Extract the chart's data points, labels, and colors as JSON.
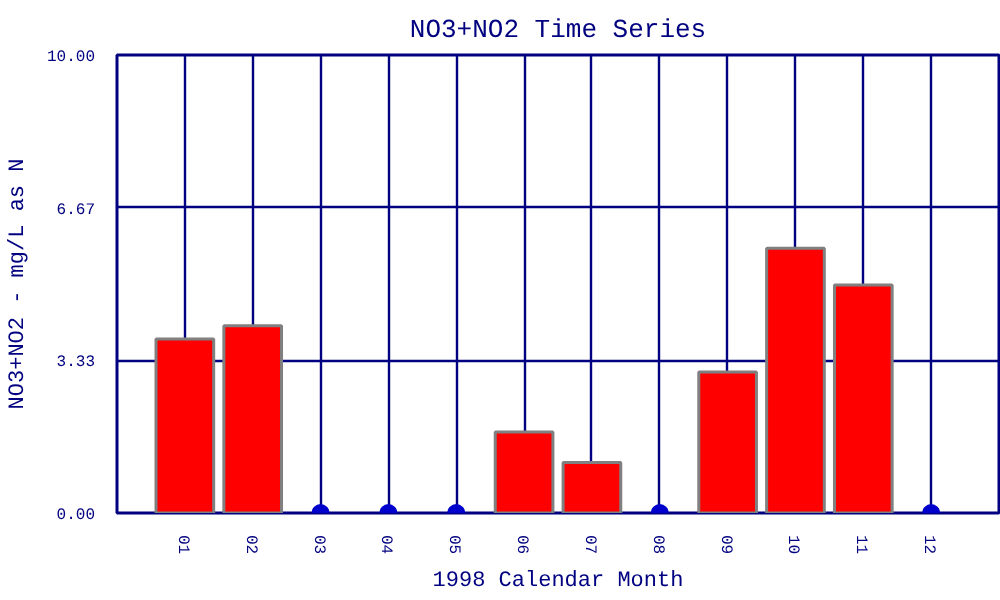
{
  "chart_data": {
    "type": "bar",
    "title": "NO3+NO2 Time Series",
    "xlabel": "1998 Calendar Month",
    "ylabel": "NO3+NO2 - mg/L as N",
    "categories": [
      "01",
      "02",
      "03",
      "04",
      "05",
      "06",
      "07",
      "08",
      "09",
      "10",
      "11",
      "12"
    ],
    "series": [
      {
        "color": "#ff0000",
        "values": [
          3.8,
          4.09,
          null,
          null,
          null,
          1.77,
          1.1,
          null,
          3.08,
          5.78,
          4.98,
          null
        ]
      },
      {
        "type": "scatter",
        "color": "#0000cc",
        "marker": "circle",
        "values": [
          null,
          null,
          0,
          0,
          0,
          null,
          null,
          0,
          null,
          null,
          null,
          0
        ]
      }
    ],
    "ylim": [
      0,
      10
    ],
    "yticks": [
      {
        "value": 0,
        "label": "0.00"
      },
      {
        "value": 3.33,
        "label": "3.33"
      },
      {
        "value": 6.67,
        "label": "6.67"
      },
      {
        "value": 10,
        "label": "10.00"
      }
    ],
    "grid": true
  }
}
